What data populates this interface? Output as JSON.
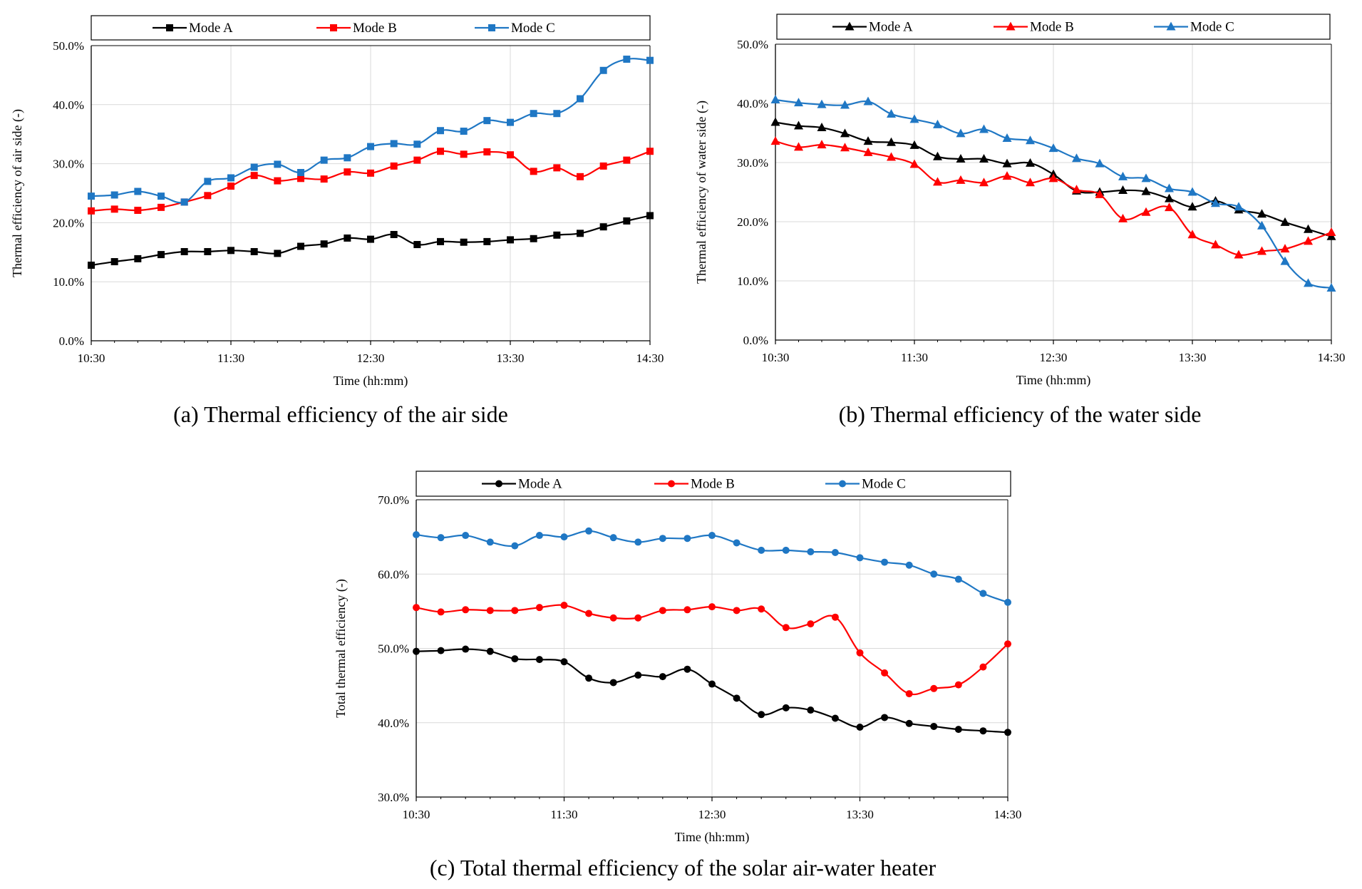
{
  "colors": {
    "mode_a": "#000000",
    "mode_b": "#ff0000",
    "mode_c": "#1f77c4",
    "grid": "#d9d9d9"
  },
  "x_ticks": [
    "10:30",
    "11:30",
    "12:30",
    "13:30",
    "14:30"
  ],
  "chart_data": [
    {
      "type": "line",
      "marker": "square",
      "caption": "(a) Thermal efficiency of the air side",
      "xlabel": "Time (hh:mm)",
      "ylabel": "Thermal efficiency of air side (-)",
      "ylim": [
        0,
        50
      ],
      "yticks": [
        "0.0%",
        "10.0%",
        "20.0%",
        "30.0%",
        "40.0%",
        "50.0%"
      ],
      "x_range_minutes": [
        630,
        870
      ],
      "x_step_minutes": 10,
      "series": [
        {
          "name": "Mode A",
          "values": [
            12.8,
            13.4,
            13.9,
            14.6,
            15.1,
            15.1,
            15.3,
            15.1,
            14.8,
            16.0,
            16.4,
            17.4,
            17.2,
            18.0,
            16.3,
            16.8,
            16.7,
            16.8,
            17.1,
            17.3,
            17.9,
            18.2,
            19.3,
            20.3,
            21.2
          ]
        },
        {
          "name": "Mode B",
          "values": [
            22.0,
            22.3,
            22.1,
            22.6,
            23.5,
            24.6,
            26.2,
            28.0,
            27.1,
            27.5,
            27.4,
            28.6,
            28.4,
            29.6,
            30.6,
            32.1,
            31.6,
            32.0,
            31.5,
            28.7,
            29.3,
            27.8,
            29.6,
            30.6,
            32.1
          ]
        },
        {
          "name": "Mode C",
          "values": [
            24.5,
            24.7,
            25.3,
            24.5,
            23.5,
            27.0,
            27.6,
            29.4,
            29.9,
            28.5,
            30.6,
            31.0,
            32.9,
            33.4,
            33.3,
            35.6,
            35.5,
            37.3,
            37.0,
            38.5,
            38.5,
            41.0,
            45.8,
            47.7,
            47.5
          ]
        }
      ]
    },
    {
      "type": "line",
      "marker": "triangle",
      "caption": "(b) Thermal efficiency of the water side",
      "xlabel": "Time (hh:mm)",
      "ylabel": "Thermal efficiency of water side (-)",
      "ylim": [
        0,
        50
      ],
      "yticks": [
        "0.0%",
        "10.0%",
        "20.0%",
        "30.0%",
        "40.0%",
        "50.0%"
      ],
      "x_range_minutes": [
        630,
        870
      ],
      "x_step_minutes": 10,
      "series": [
        {
          "name": "Mode A",
          "values": [
            36.8,
            36.2,
            35.9,
            34.9,
            33.6,
            33.4,
            32.9,
            31.0,
            30.6,
            30.6,
            29.8,
            29.9,
            28.0,
            25.2,
            25.0,
            25.3,
            25.1,
            23.9,
            22.5,
            23.5,
            22.0,
            21.3,
            19.9,
            18.7,
            17.5
          ]
        },
        {
          "name": "Mode B",
          "values": [
            33.6,
            32.6,
            33.0,
            32.5,
            31.7,
            30.9,
            29.7,
            26.7,
            27.0,
            26.6,
            27.7,
            26.6,
            27.3,
            25.4,
            24.6,
            20.5,
            21.6,
            22.4,
            17.8,
            16.1,
            14.4,
            15.0,
            15.4,
            16.7,
            18.2
          ]
        },
        {
          "name": "Mode C",
          "values": [
            40.6,
            40.1,
            39.8,
            39.7,
            40.3,
            38.2,
            37.3,
            36.4,
            34.9,
            35.6,
            34.1,
            33.7,
            32.4,
            30.7,
            29.8,
            27.6,
            27.3,
            25.6,
            25.0,
            23.1,
            22.5,
            19.3,
            13.3,
            9.6,
            8.8
          ]
        }
      ]
    },
    {
      "type": "line",
      "marker": "circle",
      "caption": "(c) Total thermal efficiency of the solar air-water heater",
      "xlabel": "Time (hh:mm)",
      "ylabel": "Total thermal efficiency (-)",
      "ylim": [
        30,
        70
      ],
      "yticks": [
        "30.0%",
        "40.0%",
        "50.0%",
        "60.0%",
        "70.0%"
      ],
      "x_range_minutes": [
        630,
        870
      ],
      "x_step_minutes": 10,
      "series": [
        {
          "name": "Mode A",
          "values": [
            49.6,
            49.7,
            49.9,
            49.6,
            48.6,
            48.5,
            48.2,
            46.0,
            45.4,
            46.4,
            46.2,
            47.2,
            45.2,
            43.3,
            41.1,
            42.0,
            41.7,
            40.6,
            39.4,
            40.7,
            39.9,
            39.5,
            39.1,
            38.9,
            38.7
          ]
        },
        {
          "name": "Mode B",
          "values": [
            55.5,
            54.9,
            55.2,
            55.1,
            55.1,
            55.5,
            55.8,
            54.7,
            54.1,
            54.1,
            55.1,
            55.2,
            55.6,
            55.1,
            55.3,
            52.8,
            53.3,
            54.2,
            49.4,
            46.7,
            43.9,
            44.6,
            45.1,
            47.5,
            50.6
          ]
        },
        {
          "name": "Mode C",
          "values": [
            65.3,
            64.9,
            65.2,
            64.3,
            63.8,
            65.2,
            65.0,
            65.8,
            64.9,
            64.3,
            64.8,
            64.8,
            65.2,
            64.2,
            63.2,
            63.2,
            63.0,
            62.9,
            62.2,
            61.6,
            61.2,
            60.0,
            59.3,
            57.4,
            56.2
          ]
        }
      ]
    }
  ]
}
